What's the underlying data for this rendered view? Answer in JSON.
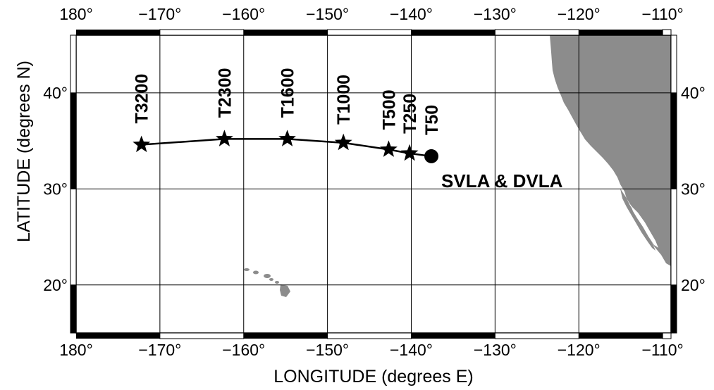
{
  "map": {
    "xlabel": "LONGITUDE (degrees E)",
    "ylabel": "LATITUDE (degrees N)",
    "x_ticks": [
      "180°",
      "−170°",
      "−160°",
      "−150°",
      "−140°",
      "−130°",
      "−120°",
      "−110°"
    ],
    "y_ticks": [
      "20°",
      "30°",
      "40°"
    ],
    "lon_range": [
      -180,
      -109
    ],
    "lat_range": [
      15,
      46
    ],
    "land_color": "#8c8c8c",
    "grid": true,
    "frame_style": "alternating black/white border bars"
  },
  "transmissions": [
    {
      "label": "T3200",
      "lon": -172.2,
      "lat": 34.6
    },
    {
      "label": "T2300",
      "lon": -162.3,
      "lat": 35.2
    },
    {
      "label": "T1600",
      "lon": -154.8,
      "lat": 35.2
    },
    {
      "label": "T1000",
      "lon": -148.1,
      "lat": 34.8
    },
    {
      "label": "T500",
      "lon": -142.7,
      "lat": 34.1
    },
    {
      "label": "T250",
      "lon": -140.2,
      "lat": 33.7
    },
    {
      "label": "T50",
      "lon": -137.6,
      "lat": 33.4
    }
  ],
  "receiver": {
    "label": "SVLA & DVLA",
    "lon": -137.6,
    "lat": 33.4
  },
  "chart_data": {
    "type": "scatter",
    "title": "",
    "xlabel": "LONGITUDE (degrees E)",
    "ylabel": "LATITUDE (degrees N)",
    "xlim": [
      -180,
      -109
    ],
    "ylim": [
      15,
      46
    ],
    "series": [
      {
        "name": "",
        "marker": "star",
        "x": [
          -172.2,
          -162.3,
          -154.8,
          -148.1,
          -142.7,
          -140.2
        ],
        "y": [
          34.6,
          35.2,
          35.2,
          34.8,
          34.1,
          33.7
        ],
        "labels": [
          "T3200",
          "T2300",
          "T1600",
          "T1000",
          "T500",
          "T250"
        ]
      },
      {
        "name": "",
        "marker": "circle",
        "x": [
          -137.6
        ],
        "y": [
          33.4
        ],
        "labels": [
          "T50"
        ]
      }
    ]
  }
}
